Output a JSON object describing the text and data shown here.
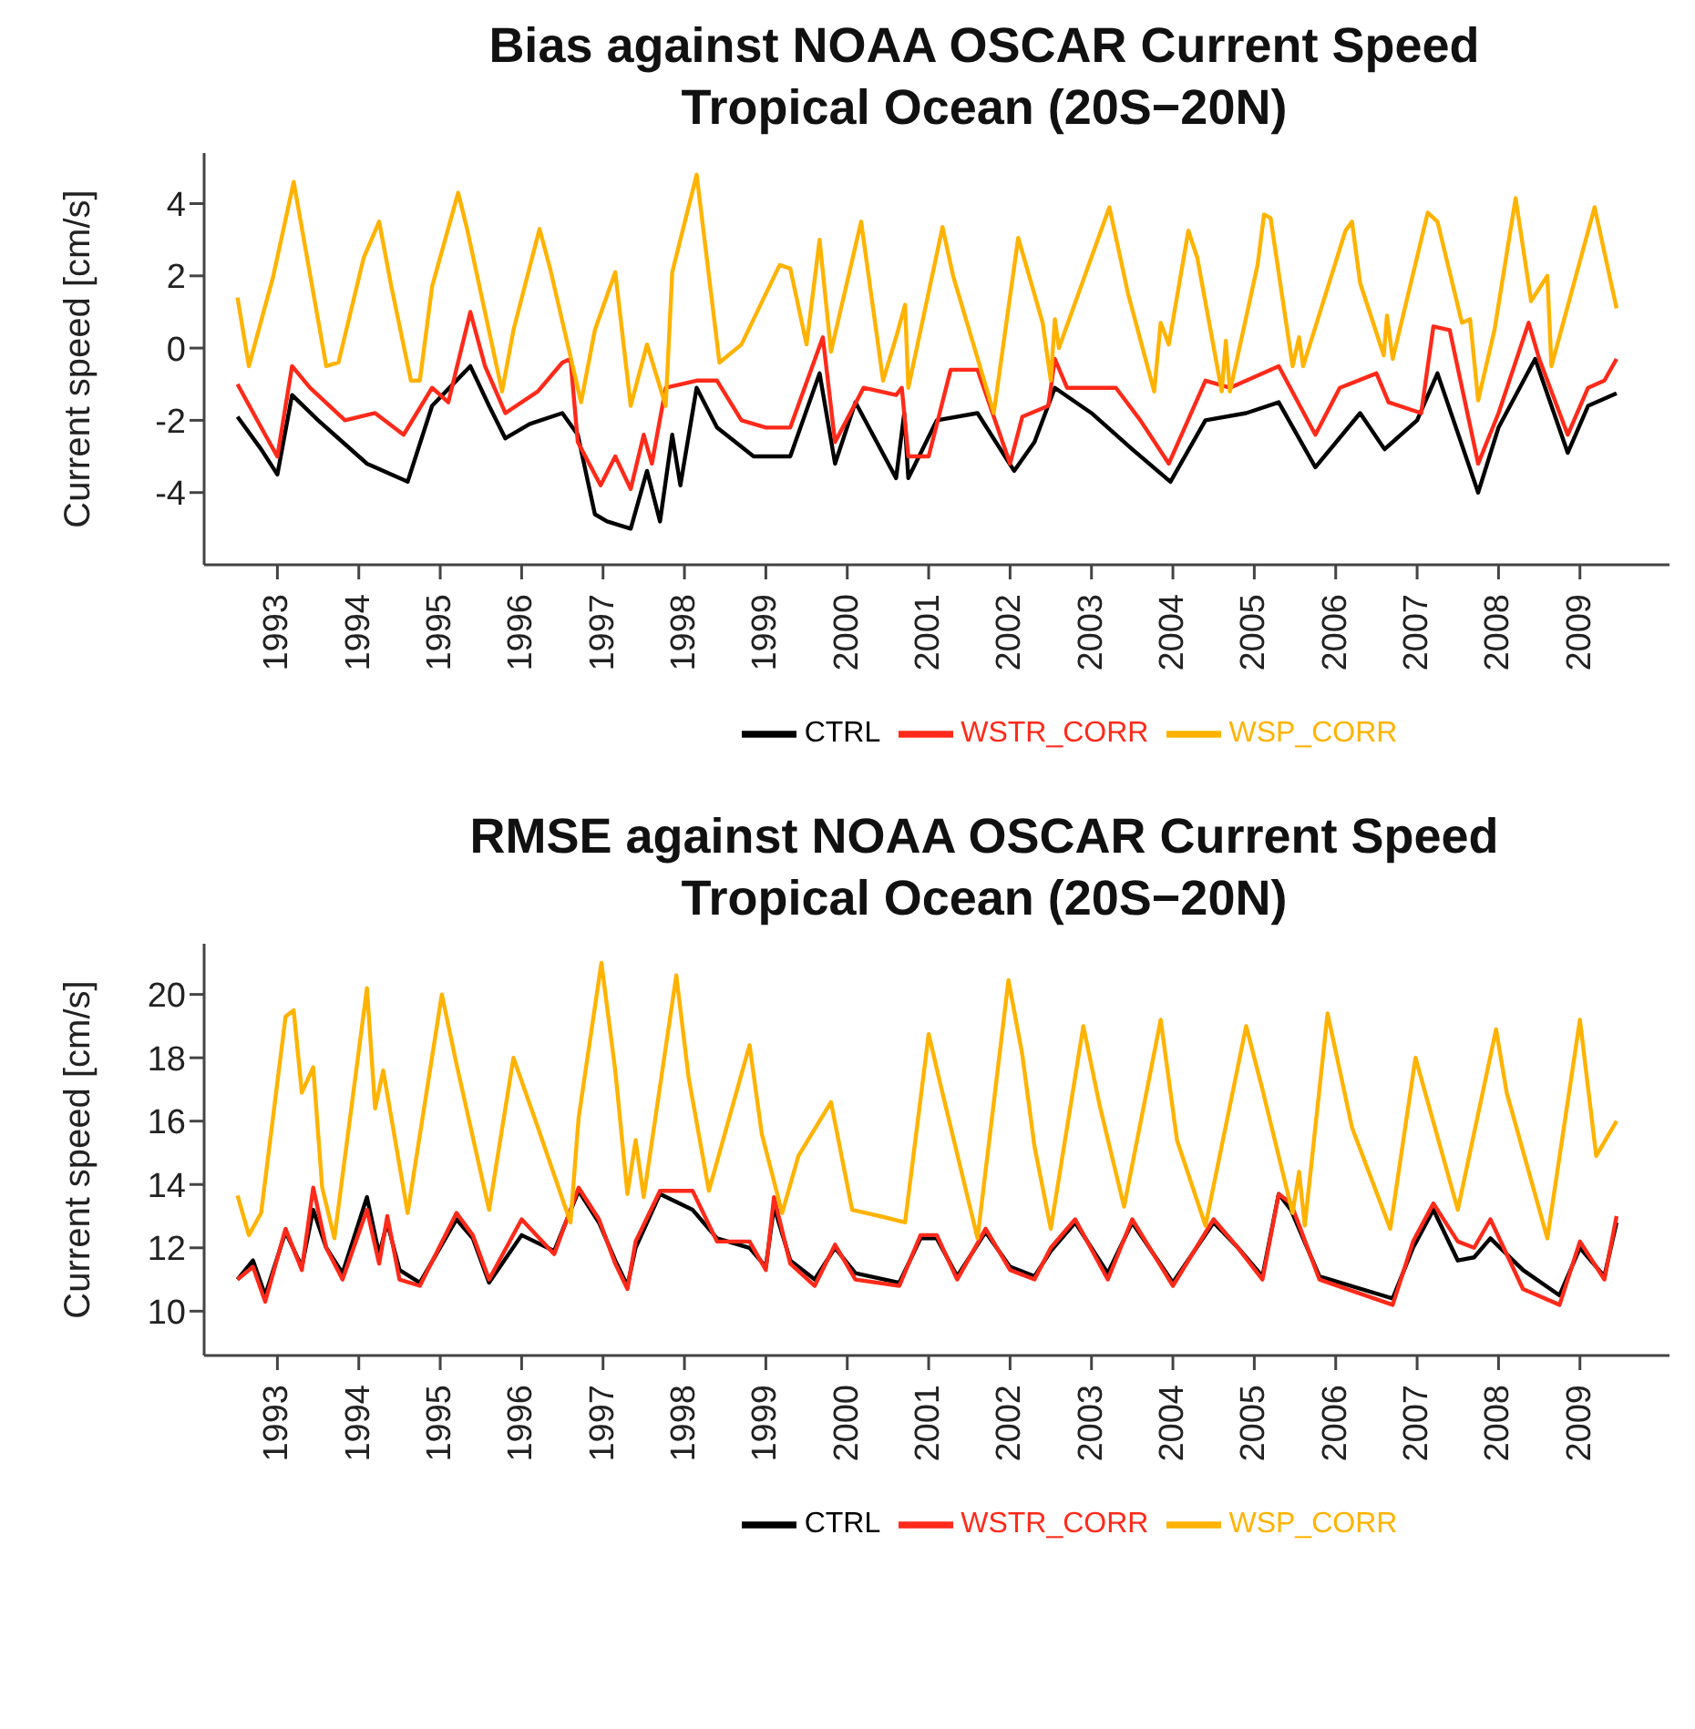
{
  "chart_data": [
    {
      "type": "line",
      "title": "Bias against NOAA OSCAR Current Speed",
      "subtitle": "Tropical Ocean (20S−20N)",
      "ylabel": "Current speed [cm/s]",
      "xlim": [
        1992.1,
        2010.1
      ],
      "xticks": [
        1993,
        1994,
        1995,
        1996,
        1997,
        1998,
        1999,
        2000,
        2001,
        2002,
        2003,
        2004,
        2005,
        2006,
        2007,
        2008,
        2009
      ],
      "ylim": [
        -6,
        5.4
      ],
      "yticks": [
        -4,
        -2,
        0,
        2,
        4
      ],
      "grid": false,
      "legend": "bottom",
      "line_style": "solid",
      "marker": "none",
      "series": [
        {
          "name": "CTRL",
          "color": "#000000",
          "x": [
            1992.51,
            1992.8,
            1993.0,
            1993.18,
            1993.5,
            1993.7,
            1994.1,
            1994.6,
            1994.9,
            1995.37,
            1995.6,
            1995.8,
            1996.1,
            1996.5,
            1996.69,
            1996.9,
            1997.05,
            1997.34,
            1997.54,
            1997.7,
            1997.85,
            1997.95,
            1998.15,
            1998.4,
            1998.85,
            1999.3,
            1999.66,
            1999.85,
            2000.1,
            2000.6,
            2000.7,
            2000.75,
            2001.1,
            2001.6,
            2002.05,
            2002.3,
            2002.55,
            2003.0,
            2003.5,
            2003.97,
            2004.4,
            2004.9,
            2005.3,
            2005.75,
            2006.3,
            2006.6,
            2007.0,
            2007.25,
            2007.75,
            2008.0,
            2008.45,
            2008.85,
            2009.1,
            2009.45
          ],
          "values": [
            -1.9,
            -2.8,
            -3.5,
            -1.3,
            -2.0,
            -2.4,
            -3.2,
            -3.7,
            -1.6,
            -0.5,
            -1.6,
            -2.5,
            -2.1,
            -1.8,
            -2.4,
            -4.6,
            -4.8,
            -5.0,
            -3.4,
            -4.8,
            -2.4,
            -3.8,
            -1.1,
            -2.2,
            -3.0,
            -3.0,
            -0.7,
            -3.2,
            -1.5,
            -3.6,
            -1.8,
            -3.6,
            -2.0,
            -1.8,
            -3.4,
            -2.6,
            -1.1,
            -1.8,
            -2.8,
            -3.7,
            -2.0,
            -1.8,
            -1.5,
            -3.3,
            -1.8,
            -2.8,
            -2.0,
            -0.7,
            -4.0,
            -2.2,
            -0.3,
            -2.9,
            -1.6,
            -1.25
          ]
        },
        {
          "name": "WSTR_CORR",
          "color": "#ff2a1a",
          "x": [
            1992.51,
            1992.85,
            1993.0,
            1993.18,
            1993.4,
            1993.83,
            1994.2,
            1994.55,
            1994.9,
            1995.1,
            1995.37,
            1995.55,
            1995.8,
            1996.2,
            1996.5,
            1996.6,
            1996.69,
            1996.97,
            1997.15,
            1997.34,
            1997.5,
            1997.6,
            1997.77,
            1998.15,
            1998.4,
            1998.7,
            1999.0,
            1999.3,
            1999.7,
            1999.85,
            2000.2,
            2000.6,
            2000.67,
            2000.75,
            2001.0,
            2001.27,
            2001.6,
            2002.0,
            2002.15,
            2002.47,
            2002.55,
            2002.7,
            2003.3,
            2003.6,
            2003.95,
            2004.4,
            2004.7,
            2005.3,
            2005.75,
            2006.05,
            2006.5,
            2006.65,
            2007.05,
            2007.2,
            2007.4,
            2007.75,
            2008.0,
            2008.37,
            2008.5,
            2008.85,
            2009.1,
            2009.3,
            2009.45
          ],
          "values": [
            -1.0,
            -2.4,
            -3.0,
            -0.5,
            -1.1,
            -2.0,
            -1.8,
            -2.4,
            -1.1,
            -1.5,
            1.0,
            -0.5,
            -1.8,
            -1.2,
            -0.4,
            -0.3,
            -2.6,
            -3.8,
            -3.0,
            -3.9,
            -2.4,
            -3.2,
            -1.1,
            -0.9,
            -0.9,
            -2.0,
            -2.2,
            -2.2,
            0.3,
            -2.6,
            -1.1,
            -1.3,
            -1.1,
            -3.0,
            -3.0,
            -0.6,
            -0.6,
            -3.2,
            -1.9,
            -1.6,
            -0.3,
            -1.1,
            -1.1,
            -2.0,
            -3.2,
            -0.9,
            -1.1,
            -0.5,
            -2.4,
            -1.1,
            -0.7,
            -1.5,
            -1.8,
            0.6,
            0.5,
            -3.2,
            -1.8,
            0.7,
            -0.3,
            -2.4,
            -1.1,
            -0.9,
            -0.3
          ]
        },
        {
          "name": "WSP_CORR",
          "color": "#ffb300",
          "x": [
            1992.51,
            1992.65,
            1992.95,
            1993.2,
            1993.6,
            1993.75,
            1994.06,
            1994.25,
            1994.4,
            1994.64,
            1994.75,
            1994.9,
            1995.22,
            1995.33,
            1995.76,
            1995.9,
            1996.22,
            1996.35,
            1996.73,
            1996.9,
            1997.15,
            1997.34,
            1997.54,
            1997.77,
            1997.85,
            1998.15,
            1998.43,
            1998.7,
            1999.17,
            1999.3,
            1999.5,
            1999.66,
            1999.8,
            2000.17,
            2000.44,
            2000.6,
            2000.71,
            2000.75,
            2001.17,
            2001.3,
            2001.8,
            2002.1,
            2002.4,
            2002.5,
            2002.55,
            2002.6,
            2003.22,
            2003.45,
            2003.77,
            2003.85,
            2003.95,
            2004.19,
            2004.3,
            2004.6,
            2004.65,
            2004.7,
            2005.04,
            2005.12,
            2005.2,
            2005.47,
            2005.55,
            2005.6,
            2006.12,
            2006.2,
            2006.3,
            2006.59,
            2006.63,
            2006.7,
            2007.13,
            2007.25,
            2007.55,
            2007.65,
            2007.75,
            2007.95,
            2008.21,
            2008.4,
            2008.6,
            2008.65,
            2009.18,
            2009.45
          ],
          "values": [
            1.4,
            -0.5,
            2.0,
            4.6,
            -0.5,
            -0.4,
            2.5,
            3.5,
            1.7,
            -0.9,
            -0.9,
            1.7,
            4.3,
            3.3,
            -1.2,
            0.5,
            3.3,
            2.2,
            -1.5,
            0.5,
            2.1,
            -1.6,
            0.1,
            -1.6,
            2.1,
            4.8,
            -0.4,
            0.1,
            2.3,
            2.2,
            0.1,
            3.0,
            -0.1,
            3.5,
            -0.9,
            0.3,
            1.2,
            -1.1,
            3.35,
            2.0,
            -1.8,
            3.05,
            0.7,
            -0.9,
            0.8,
            0.0,
            3.9,
            1.5,
            -1.2,
            0.7,
            0.1,
            3.25,
            2.5,
            -1.2,
            0.2,
            -1.2,
            2.3,
            3.7,
            3.6,
            -0.5,
            0.3,
            -0.5,
            3.25,
            3.5,
            1.8,
            -0.2,
            0.9,
            -0.3,
            3.75,
            3.5,
            0.7,
            0.8,
            -1.45,
            0.5,
            4.15,
            1.3,
            2.0,
            -0.5,
            3.9,
            1.1
          ]
        }
      ]
    },
    {
      "type": "line",
      "title": "RMSE against NOAA OSCAR Current Speed",
      "subtitle": "Tropical Ocean (20S−20N)",
      "ylabel": "Current speed [cm/s]",
      "xlim": [
        1992.1,
        2010.1
      ],
      "xticks": [
        1993,
        1994,
        1995,
        1996,
        1997,
        1998,
        1999,
        2000,
        2001,
        2002,
        2003,
        2004,
        2005,
        2006,
        2007,
        2008,
        2009
      ],
      "ylim": [
        8.6,
        21.6
      ],
      "yticks": [
        10,
        12,
        14,
        16,
        18,
        20
      ],
      "grid": false,
      "legend": "bottom",
      "line_style": "solid",
      "marker": "none",
      "series": [
        {
          "name": "CTRL",
          "color": "#000000",
          "x": [
            1992.51,
            1992.7,
            1992.85,
            1993.1,
            1993.3,
            1993.44,
            1993.6,
            1993.8,
            1994.1,
            1994.25,
            1994.35,
            1994.5,
            1994.75,
            1995.2,
            1995.4,
            1995.6,
            1996.0,
            1996.4,
            1996.7,
            1996.95,
            1997.15,
            1997.3,
            1997.4,
            1997.7,
            1998.1,
            1998.4,
            1998.8,
            1999.0,
            1999.1,
            1999.3,
            1999.6,
            1999.85,
            2000.1,
            2000.64,
            2000.9,
            2001.1,
            2001.35,
            2001.7,
            2002.0,
            2002.3,
            2002.5,
            2002.8,
            2003.2,
            2003.5,
            2004.0,
            2004.5,
            2004.8,
            2005.1,
            2005.3,
            2005.45,
            2005.8,
            2006.7,
            2006.95,
            2007.2,
            2007.5,
            2007.7,
            2007.9,
            2008.3,
            2008.75,
            2009.0,
            2009.3,
            2009.45
          ],
          "values": [
            11.0,
            11.6,
            10.5,
            12.5,
            11.4,
            13.2,
            12.0,
            11.2,
            13.6,
            11.8,
            12.8,
            11.3,
            10.9,
            12.9,
            12.3,
            10.9,
            12.4,
            11.9,
            13.8,
            12.8,
            11.6,
            10.8,
            12.0,
            13.7,
            13.2,
            12.3,
            12.0,
            11.4,
            13.3,
            11.6,
            11.0,
            12.0,
            11.2,
            10.9,
            12.3,
            12.3,
            11.1,
            12.5,
            11.4,
            11.1,
            11.9,
            12.8,
            11.2,
            12.8,
            10.9,
            12.8,
            12.0,
            11.1,
            13.7,
            13.2,
            11.1,
            10.4,
            12.0,
            13.2,
            11.6,
            11.7,
            12.3,
            11.3,
            10.5,
            12.0,
            11.1,
            12.8
          ]
        },
        {
          "name": "WSTR_CORR",
          "color": "#ff2a1a",
          "x": [
            1992.51,
            1992.7,
            1992.85,
            1993.1,
            1993.3,
            1993.44,
            1993.6,
            1993.8,
            1994.1,
            1994.25,
            1994.35,
            1994.5,
            1994.75,
            1995.2,
            1995.4,
            1995.6,
            1996.0,
            1996.4,
            1996.7,
            1996.95,
            1997.15,
            1997.3,
            1997.4,
            1997.7,
            1998.1,
            1998.4,
            1998.8,
            1999.0,
            1999.1,
            1999.3,
            1999.6,
            1999.85,
            2000.1,
            2000.64,
            2000.9,
            2001.1,
            2001.35,
            2001.7,
            2002.0,
            2002.3,
            2002.5,
            2002.8,
            2003.2,
            2003.5,
            2004.0,
            2004.5,
            2004.8,
            2005.1,
            2005.3,
            2005.45,
            2005.8,
            2006.7,
            2006.95,
            2007.2,
            2007.5,
            2007.7,
            2007.9,
            2008.3,
            2008.75,
            2009.0,
            2009.3,
            2009.45
          ],
          "values": [
            11.0,
            11.4,
            10.3,
            12.6,
            11.3,
            13.9,
            12.0,
            11.0,
            13.2,
            11.5,
            13.0,
            11.0,
            10.8,
            13.1,
            12.4,
            11.0,
            12.9,
            11.8,
            13.9,
            12.9,
            11.5,
            10.7,
            12.2,
            13.8,
            13.8,
            12.2,
            12.2,
            11.3,
            13.6,
            11.5,
            10.8,
            12.1,
            11.0,
            10.8,
            12.4,
            12.4,
            11.0,
            12.6,
            11.3,
            11.0,
            12.0,
            12.9,
            11.0,
            12.9,
            10.8,
            12.9,
            12.0,
            11.0,
            13.7,
            13.4,
            11.0,
            10.2,
            12.2,
            13.4,
            12.2,
            12.0,
            12.9,
            10.7,
            10.2,
            12.2,
            11.0,
            13.0
          ]
        },
        {
          "name": "WSP_CORR",
          "color": "#ffb300",
          "x": [
            1992.51,
            1992.65,
            1992.8,
            1993.1,
            1993.2,
            1993.3,
            1993.44,
            1993.55,
            1993.7,
            1994.1,
            1994.2,
            1994.3,
            1994.6,
            1995.02,
            1995.2,
            1995.6,
            1995.9,
            1996.2,
            1996.6,
            1996.7,
            1996.98,
            1997.15,
            1997.3,
            1997.4,
            1997.5,
            1997.9,
            1998.05,
            1998.3,
            1998.8,
            1998.95,
            1999.2,
            1999.4,
            1999.8,
            2000.06,
            2000.4,
            2000.71,
            2001.0,
            2001.15,
            2001.6,
            2001.98,
            2002.15,
            2002.3,
            2002.5,
            2002.9,
            2003.1,
            2003.4,
            2003.85,
            2004.05,
            2004.4,
            2004.9,
            2005.1,
            2005.47,
            2005.55,
            2005.62,
            2005.9,
            2006.2,
            2006.67,
            2006.98,
            2007.5,
            2007.97,
            2008.1,
            2008.6,
            2009.0,
            2009.2,
            2009.45
          ],
          "values": [
            13.65,
            12.4,
            13.1,
            19.3,
            19.5,
            16.9,
            17.7,
            13.9,
            12.3,
            20.2,
            16.4,
            17.6,
            13.1,
            20.0,
            17.8,
            13.2,
            18.0,
            15.8,
            12.8,
            16.1,
            21.0,
            17.6,
            13.7,
            15.4,
            13.6,
            20.6,
            17.4,
            13.8,
            18.4,
            15.6,
            13.1,
            14.9,
            16.6,
            13.2,
            13.0,
            12.8,
            18.75,
            17.1,
            12.3,
            20.45,
            18.1,
            15.2,
            12.6,
            19.0,
            16.5,
            13.3,
            19.2,
            15.4,
            12.7,
            19.0,
            17.0,
            13.1,
            14.4,
            12.7,
            19.4,
            15.8,
            12.6,
            18.0,
            13.2,
            18.9,
            16.9,
            12.3,
            19.2,
            14.9,
            16.0
          ]
        }
      ]
    }
  ]
}
